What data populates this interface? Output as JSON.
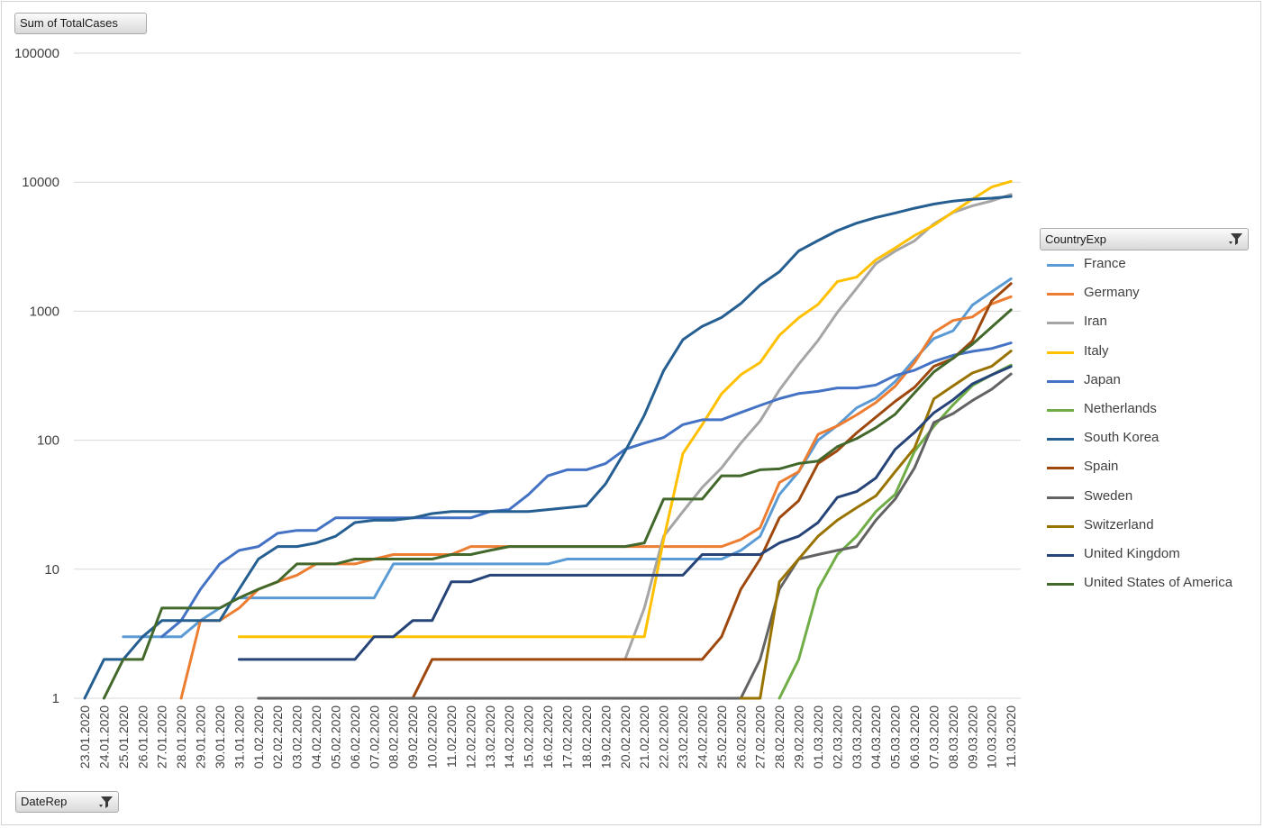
{
  "field_button_top": {
    "label": "Sum of TotalCases"
  },
  "axis_field_button": {
    "label": "DateRep"
  },
  "legend": {
    "title": "CountryExp",
    "filter_icon": "filter-dropdown-icon",
    "items": [
      {
        "label": "France",
        "color": "#5b9bd5"
      },
      {
        "label": "Germany",
        "color": "#ed7d31"
      },
      {
        "label": "Iran",
        "color": "#a5a5a5"
      },
      {
        "label": "Italy",
        "color": "#ffc000"
      },
      {
        "label": "Japan",
        "color": "#4472c4"
      },
      {
        "label": "Netherlands",
        "color": "#70ad47"
      },
      {
        "label": "South Korea",
        "color": "#255e91"
      },
      {
        "label": "Spain",
        "color": "#9e480e"
      },
      {
        "label": "Sweden",
        "color": "#636363"
      },
      {
        "label": "Switzerland",
        "color": "#997300"
      },
      {
        "label": "United Kingdom",
        "color": "#264478"
      },
      {
        "label": "United States of America",
        "color": "#43682b"
      }
    ]
  },
  "chart_data": {
    "type": "line",
    "title": "",
    "xlabel": "",
    "ylabel": "",
    "y_scale": "log",
    "ylim": [
      1,
      100000
    ],
    "y_ticks": [
      "1",
      "10",
      "100",
      "1000",
      "10000",
      "100000"
    ],
    "grid": "horizontal",
    "legend_position": "right",
    "categories": [
      "23.01.2020",
      "24.01.2020",
      "25.01.2020",
      "26.01.2020",
      "27.01.2020",
      "28.01.2020",
      "29.01.2020",
      "30.01.2020",
      "31.01.2020",
      "01.02.2020",
      "02.02.2020",
      "03.02.2020",
      "04.02.2020",
      "05.02.2020",
      "06.02.2020",
      "07.02.2020",
      "08.02.2020",
      "09.02.2020",
      "10.02.2020",
      "11.02.2020",
      "12.02.2020",
      "13.02.2020",
      "14.02.2020",
      "15.02.2020",
      "16.02.2020",
      "17.02.2020",
      "18.02.2020",
      "19.02.2020",
      "20.02.2020",
      "21.02.2020",
      "22.02.2020",
      "23.02.2020",
      "24.02.2020",
      "25.02.2020",
      "26.02.2020",
      "27.02.2020",
      "28.02.2020",
      "29.02.2020",
      "01.03.2020",
      "02.03.2020",
      "03.03.2020",
      "04.03.2020",
      "05.03.2020",
      "06.03.2020",
      "07.03.2020",
      "08.03.2020",
      "09.03.2020",
      "10.03.2020",
      "11.03.2020"
    ],
    "series": [
      {
        "name": "France",
        "color": "#5b9bd5",
        "values": [
          null,
          null,
          3,
          3,
          3,
          3,
          4,
          5,
          6,
          6,
          6,
          6,
          6,
          6,
          6,
          6,
          11,
          11,
          11,
          11,
          11,
          11,
          11,
          11,
          11,
          12,
          12,
          12,
          12,
          12,
          12,
          12,
          12,
          12,
          14,
          18,
          38,
          57,
          100,
          130,
          178,
          212,
          285,
          423,
          613,
          706,
          1116,
          1412,
          1784
        ]
      },
      {
        "name": "Germany",
        "color": "#ed7d31",
        "values": [
          null,
          null,
          null,
          null,
          null,
          1,
          4,
          4,
          5,
          7,
          8,
          9,
          11,
          11,
          11,
          12,
          13,
          13,
          13,
          13,
          15,
          15,
          15,
          15,
          15,
          15,
          15,
          15,
          15,
          15,
          15,
          15,
          15,
          15,
          17,
          21,
          47,
          57,
          111,
          129,
          157,
          196,
          262,
          400,
          684,
          847,
          902,
          1139,
          1296
        ]
      },
      {
        "name": "Iran",
        "color": "#a5a5a5",
        "values": [
          null,
          null,
          null,
          null,
          null,
          null,
          null,
          null,
          null,
          null,
          null,
          null,
          null,
          null,
          null,
          null,
          null,
          null,
          null,
          null,
          null,
          null,
          null,
          null,
          null,
          null,
          null,
          null,
          2,
          5,
          18,
          28,
          43,
          61,
          95,
          141,
          245,
          388,
          593,
          978,
          1501,
          2336,
          2922,
          3513,
          4747,
          5823,
          6566,
          7161,
          8042
        ]
      },
      {
        "name": "Italy",
        "color": "#ffc000",
        "values": [
          null,
          null,
          null,
          null,
          null,
          null,
          null,
          null,
          3,
          3,
          3,
          3,
          3,
          3,
          3,
          3,
          3,
          3,
          3,
          3,
          3,
          3,
          3,
          3,
          3,
          3,
          3,
          3,
          3,
          3,
          17,
          79,
          132,
          229,
          322,
          400,
          650,
          888,
          1128,
          1694,
          1835,
          2502,
          3089,
          3858,
          4636,
          5883,
          7375,
          9172,
          10149
        ]
      },
      {
        "name": "Japan",
        "color": "#4472c4",
        "values": [
          null,
          null,
          null,
          null,
          3,
          4,
          7,
          11,
          14,
          15,
          19,
          20,
          20,
          25,
          25,
          25,
          25,
          25,
          25,
          25,
          25,
          28,
          29,
          38,
          53,
          59,
          59,
          66,
          85,
          95,
          105,
          132,
          144,
          144,
          164,
          186,
          210,
          230,
          239,
          254,
          254,
          268,
          317,
          349,
          408,
          455,
          488,
          514,
          568
        ]
      },
      {
        "name": "Netherlands",
        "color": "#70ad47",
        "values": [
          null,
          null,
          null,
          null,
          null,
          null,
          null,
          null,
          null,
          null,
          null,
          null,
          null,
          null,
          null,
          null,
          null,
          null,
          null,
          null,
          null,
          null,
          null,
          null,
          null,
          null,
          null,
          null,
          null,
          null,
          null,
          null,
          null,
          null,
          null,
          null,
          1,
          2,
          7,
          13,
          18,
          28,
          38,
          82,
          128,
          188,
          265,
          321,
          382
        ]
      },
      {
        "name": "South Korea",
        "color": "#255e91",
        "values": [
          1,
          2,
          2,
          3,
          4,
          4,
          4,
          4,
          7,
          12,
          15,
          15,
          16,
          18,
          23,
          24,
          24,
          25,
          27,
          28,
          28,
          28,
          28,
          28,
          29,
          30,
          31,
          46,
          82,
          156,
          346,
          602,
          763,
          893,
          1146,
          1595,
          2022,
          2931,
          3526,
          4212,
          4812,
          5328,
          5766,
          6284,
          6767,
          7134,
          7382,
          7513,
          7755
        ]
      },
      {
        "name": "Spain",
        "color": "#9e480e",
        "values": [
          null,
          null,
          null,
          null,
          null,
          null,
          null,
          null,
          null,
          null,
          null,
          null,
          null,
          null,
          null,
          null,
          null,
          1,
          2,
          2,
          2,
          2,
          2,
          2,
          2,
          2,
          2,
          2,
          2,
          2,
          2,
          2,
          2,
          3,
          7,
          12,
          25,
          34,
          66,
          83,
          114,
          151,
          200,
          257,
          374,
          430,
          589,
          1204,
          1639
        ]
      },
      {
        "name": "Sweden",
        "color": "#636363",
        "values": [
          null,
          null,
          null,
          null,
          null,
          null,
          null,
          null,
          null,
          1,
          1,
          1,
          1,
          1,
          1,
          1,
          1,
          1,
          1,
          1,
          1,
          1,
          1,
          1,
          1,
          1,
          1,
          1,
          1,
          1,
          1,
          1,
          1,
          1,
          1,
          2,
          7,
          12,
          13,
          14,
          15,
          24,
          35,
          61,
          137,
          161,
          203,
          248,
          326
        ]
      },
      {
        "name": "Switzerland",
        "color": "#997300",
        "values": [
          null,
          null,
          null,
          null,
          null,
          null,
          null,
          null,
          null,
          null,
          null,
          null,
          null,
          null,
          null,
          null,
          null,
          null,
          null,
          null,
          null,
          null,
          null,
          null,
          null,
          null,
          null,
          null,
          null,
          null,
          null,
          null,
          null,
          null,
          1,
          1,
          8,
          12,
          18,
          24,
          30,
          37,
          57,
          87,
          209,
          264,
          332,
          374,
          491
        ]
      },
      {
        "name": "United Kingdom",
        "color": "#264478",
        "values": [
          null,
          null,
          null,
          null,
          null,
          null,
          null,
          null,
          2,
          2,
          2,
          2,
          2,
          2,
          2,
          3,
          3,
          4,
          4,
          8,
          8,
          9,
          9,
          9,
          9,
          9,
          9,
          9,
          9,
          9,
          9,
          9,
          13,
          13,
          13,
          13,
          16,
          18,
          23,
          36,
          40,
          51,
          85,
          115,
          163,
          206,
          273,
          321,
          373
        ]
      },
      {
        "name": "United States of America",
        "color": "#43682b",
        "values": [
          null,
          1,
          2,
          2,
          5,
          5,
          5,
          5,
          6,
          7,
          8,
          11,
          11,
          11,
          12,
          12,
          12,
          12,
          12,
          13,
          13,
          14,
          15,
          15,
          15,
          15,
          15,
          15,
          15,
          16,
          35,
          35,
          35,
          53,
          53,
          59,
          60,
          66,
          69,
          89,
          103,
          125,
          159,
          233,
          338,
          433,
          554,
          754,
          1025
        ]
      }
    ]
  }
}
